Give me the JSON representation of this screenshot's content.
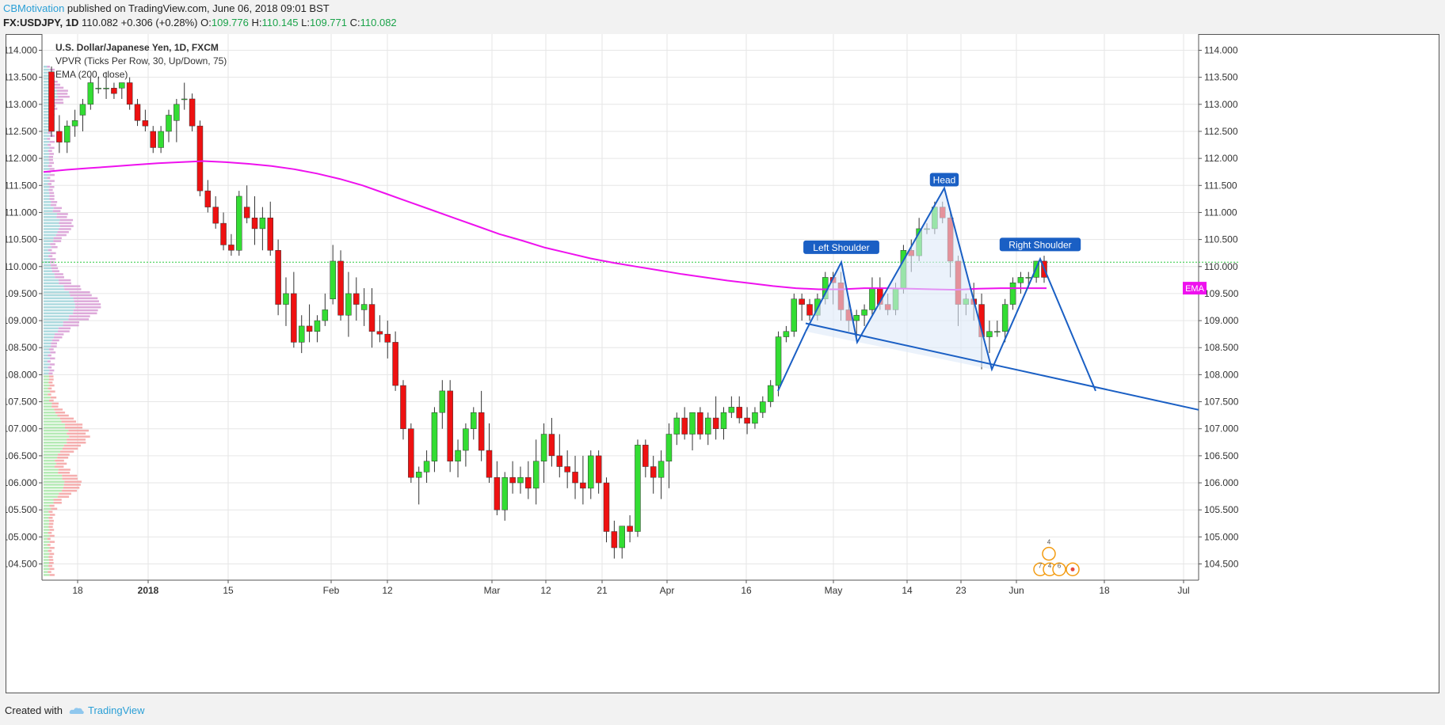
{
  "header": {
    "author": "CBMotivation",
    "published_text": " published on TradingView.com, June 06, 2018 09:01 BST",
    "symbol": "FX:USDJPY, 1D",
    "last": "110.082",
    "change": "+0.306 (+0.28%)",
    "o_label": "O:",
    "o_value": "109.776",
    "h_label": "H:",
    "h_value": "110.145",
    "l_label": "L:",
    "l_value": "109.771",
    "c_label": "C:",
    "c_value": "110.082"
  },
  "legend": {
    "title": "U.S. Dollar/Japanese Yen, 1D, FXCM",
    "vpvr": "VPVR (Ticks Per Row, 30, Up/Down, 75)",
    "ema": "EMA (200, close)"
  },
  "footer": {
    "created_with": "Created with",
    "brand": "TradingView"
  },
  "colors": {
    "up": "#33dd33",
    "down": "#ee1111",
    "ema": "#ee11ee",
    "pattern": "#1a5fc4",
    "pattern_fill": "#dde9f8",
    "grid": "#e6e6e6",
    "level": "#2ecc40"
  },
  "annotations": {
    "left_shoulder": "Left Shoulder",
    "head": "Head",
    "right_shoulder": "Right Shoulder",
    "ema_tag": "EMA",
    "events": [
      "4",
      "7",
      "4",
      "6"
    ]
  },
  "chart_data": {
    "type": "candlestick",
    "title": "U.S. Dollar/Japanese Yen, 1D, FXCM",
    "ylim": [
      104.2,
      114.3
    ],
    "y_ticks": [
      "114.000",
      "113.500",
      "113.000",
      "112.500",
      "112.000",
      "111.500",
      "111.000",
      "110.500",
      "110.000",
      "109.500",
      "109.000",
      "108.500",
      "108.000",
      "107.500",
      "107.000",
      "106.500",
      "106.000",
      "105.500",
      "105.000",
      "104.500"
    ],
    "x_ticks": [
      "18",
      "2018",
      "15",
      "Feb",
      "12",
      "Mar",
      "12",
      "21",
      "Apr",
      "16",
      "May",
      "14",
      "23",
      "Jun",
      "18",
      "Jul"
    ],
    "horizontal_level": 110.08,
    "grid": true,
    "candles": [
      [
        113.6,
        113.7,
        112.4,
        112.5
      ],
      [
        112.5,
        112.8,
        112.1,
        112.3
      ],
      [
        112.3,
        112.7,
        112.1,
        112.6
      ],
      [
        112.6,
        112.9,
        112.4,
        112.7
      ],
      [
        112.8,
        113.1,
        112.5,
        113.0
      ],
      [
        113.0,
        113.5,
        112.9,
        113.4
      ],
      [
        113.3,
        113.5,
        113.2,
        113.3
      ],
      [
        113.3,
        113.6,
        113.1,
        113.3
      ],
      [
        113.3,
        113.4,
        113.1,
        113.2
      ],
      [
        113.3,
        113.4,
        113.1,
        113.4
      ],
      [
        113.4,
        113.5,
        112.9,
        113.0
      ],
      [
        113.0,
        113.1,
        112.6,
        112.7
      ],
      [
        112.7,
        112.9,
        112.5,
        112.6
      ],
      [
        112.5,
        112.6,
        112.1,
        112.2
      ],
      [
        112.2,
        112.6,
        112.1,
        112.5
      ],
      [
        112.5,
        112.9,
        112.3,
        112.8
      ],
      [
        112.7,
        113.1,
        112.3,
        113.0
      ],
      [
        113.1,
        113.4,
        112.9,
        113.1
      ],
      [
        113.1,
        113.2,
        112.5,
        112.6
      ],
      [
        112.6,
        112.7,
        111.3,
        111.4
      ],
      [
        111.4,
        111.6,
        111.0,
        111.1
      ],
      [
        111.1,
        111.3,
        110.7,
        110.8
      ],
      [
        110.8,
        111.0,
        110.3,
        110.4
      ],
      [
        110.4,
        110.6,
        110.2,
        110.3
      ],
      [
        110.3,
        111.4,
        110.2,
        111.3
      ],
      [
        111.1,
        111.5,
        110.8,
        110.9
      ],
      [
        110.9,
        111.3,
        110.4,
        110.7
      ],
      [
        110.7,
        111.1,
        110.3,
        110.9
      ],
      [
        110.9,
        111.2,
        110.2,
        110.3
      ],
      [
        110.3,
        110.5,
        109.1,
        109.3
      ],
      [
        109.3,
        109.8,
        108.9,
        109.5
      ],
      [
        109.5,
        109.9,
        108.5,
        108.6
      ],
      [
        108.6,
        109.1,
        108.4,
        108.9
      ],
      [
        108.9,
        109.3,
        108.6,
        108.8
      ],
      [
        108.8,
        109.1,
        108.6,
        109.0
      ],
      [
        109.0,
        109.5,
        108.9,
        109.2
      ],
      [
        109.4,
        110.4,
        109.3,
        110.1
      ],
      [
        110.1,
        110.3,
        109.0,
        109.1
      ],
      [
        109.1,
        109.9,
        108.7,
        109.5
      ],
      [
        109.5,
        109.8,
        109.0,
        109.3
      ],
      [
        109.2,
        109.6,
        108.9,
        109.3
      ],
      [
        109.3,
        109.6,
        108.5,
        108.8
      ],
      [
        108.8,
        109.1,
        108.6,
        108.75
      ],
      [
        108.75,
        109.0,
        108.3,
        108.6
      ],
      [
        108.6,
        108.8,
        107.7,
        107.8
      ],
      [
        107.8,
        107.9,
        106.8,
        107.0
      ],
      [
        107.0,
        107.1,
        106.0,
        106.1
      ],
      [
        106.1,
        106.3,
        105.6,
        106.2
      ],
      [
        106.2,
        106.6,
        106.0,
        106.4
      ],
      [
        106.4,
        107.4,
        106.2,
        107.3
      ],
      [
        107.3,
        107.9,
        107.0,
        107.7
      ],
      [
        107.7,
        107.9,
        106.2,
        106.4
      ],
      [
        106.4,
        106.8,
        106.1,
        106.6
      ],
      [
        106.6,
        107.1,
        106.3,
        107.0
      ],
      [
        107.0,
        107.4,
        106.8,
        107.3
      ],
      [
        107.3,
        107.7,
        106.4,
        106.6
      ],
      [
        106.6,
        107.1,
        106.0,
        106.1
      ],
      [
        106.1,
        106.4,
        105.4,
        105.5
      ],
      [
        105.5,
        106.2,
        105.3,
        106.1
      ],
      [
        106.1,
        106.4,
        105.8,
        106.0
      ],
      [
        106.0,
        106.3,
        105.8,
        106.1
      ],
      [
        106.1,
        106.4,
        105.7,
        105.9
      ],
      [
        105.9,
        106.8,
        105.6,
        106.4
      ],
      [
        106.4,
        107.1,
        106.0,
        106.9
      ],
      [
        106.9,
        107.2,
        106.3,
        106.5
      ],
      [
        106.5,
        106.9,
        106.1,
        106.3
      ],
      [
        106.3,
        106.6,
        105.9,
        106.2
      ],
      [
        106.2,
        106.5,
        105.7,
        106.0
      ],
      [
        106.0,
        106.5,
        105.6,
        105.9
      ],
      [
        105.9,
        106.6,
        105.7,
        106.5
      ],
      [
        106.5,
        106.6,
        105.8,
        106.0
      ],
      [
        106.0,
        106.1,
        104.9,
        105.1
      ],
      [
        105.1,
        105.3,
        104.6,
        104.8
      ],
      [
        104.8,
        105.2,
        104.6,
        105.2
      ],
      [
        105.2,
        105.4,
        104.9,
        105.1
      ],
      [
        105.1,
        106.8,
        105.0,
        106.7
      ],
      [
        106.7,
        106.8,
        106.1,
        106.3
      ],
      [
        106.3,
        106.5,
        105.8,
        106.1
      ],
      [
        106.1,
        106.6,
        105.7,
        106.4
      ],
      [
        106.4,
        107.1,
        105.9,
        106.9
      ],
      [
        106.9,
        107.3,
        106.7,
        107.2
      ],
      [
        107.2,
        107.4,
        106.8,
        106.9
      ],
      [
        106.9,
        107.3,
        106.6,
        107.3
      ],
      [
        107.3,
        107.4,
        106.8,
        106.9
      ],
      [
        106.9,
        107.3,
        106.7,
        107.2
      ],
      [
        107.2,
        107.6,
        106.8,
        107.0
      ],
      [
        107.0,
        107.4,
        106.8,
        107.3
      ],
      [
        107.3,
        107.6,
        107.2,
        107.4
      ],
      [
        107.4,
        107.6,
        107.1,
        107.2
      ],
      [
        107.2,
        107.4,
        106.9,
        107.1
      ],
      [
        107.1,
        107.4,
        107.0,
        107.3
      ],
      [
        107.3,
        107.6,
        107.2,
        107.5
      ],
      [
        107.5,
        107.9,
        107.4,
        107.8
      ],
      [
        107.8,
        108.8,
        107.6,
        108.7
      ],
      [
        108.7,
        108.9,
        108.6,
        108.8
      ],
      [
        108.8,
        109.5,
        108.7,
        109.4
      ],
      [
        109.4,
        109.5,
        109.0,
        109.3
      ],
      [
        109.3,
        109.4,
        109.0,
        109.1
      ],
      [
        109.1,
        109.5,
        109.0,
        109.4
      ],
      [
        109.4,
        109.9,
        109.3,
        109.8
      ],
      [
        109.8,
        109.9,
        109.3,
        109.7
      ],
      [
        109.7,
        109.9,
        109.0,
        109.2
      ],
      [
        109.2,
        109.4,
        108.8,
        109.0
      ],
      [
        109.0,
        109.2,
        108.7,
        109.1
      ],
      [
        109.1,
        109.3,
        108.9,
        109.2
      ],
      [
        109.2,
        109.8,
        109.1,
        109.6
      ],
      [
        109.6,
        109.8,
        109.2,
        109.3
      ],
      [
        109.3,
        109.5,
        109.1,
        109.2
      ],
      [
        109.2,
        109.7,
        109.1,
        109.6
      ],
      [
        109.6,
        110.4,
        109.5,
        110.3
      ],
      [
        110.3,
        110.5,
        109.9,
        110.2
      ],
      [
        110.2,
        110.9,
        110.1,
        110.7
      ],
      [
        110.7,
        110.8,
        110.6,
        110.7
      ],
      [
        110.7,
        111.2,
        110.6,
        111.1
      ],
      [
        111.1,
        111.2,
        110.8,
        110.9
      ],
      [
        110.9,
        111.0,
        109.8,
        110.1
      ],
      [
        110.1,
        110.2,
        108.9,
        109.3
      ],
      [
        109.3,
        109.5,
        109.1,
        109.4
      ],
      [
        109.4,
        109.7,
        109.0,
        109.3
      ],
      [
        109.3,
        109.5,
        108.1,
        108.7
      ],
      [
        108.7,
        109.0,
        108.4,
        108.8
      ],
      [
        108.8,
        109.0,
        108.7,
        108.8
      ],
      [
        108.8,
        109.4,
        108.6,
        109.3
      ],
      [
        109.3,
        109.8,
        109.2,
        109.7
      ],
      [
        109.7,
        109.9,
        109.5,
        109.8
      ],
      [
        109.8,
        109.9,
        109.6,
        109.8
      ],
      [
        109.8,
        110.1,
        109.7,
        110.1
      ],
      [
        110.1,
        110.2,
        109.7,
        109.8
      ]
    ],
    "ema": [
      111.75,
      111.79,
      111.82,
      111.85,
      111.88,
      111.91,
      111.93,
      111.95,
      111.93,
      111.9,
      111.86,
      111.8,
      111.72,
      111.62,
      111.5,
      111.35,
      111.2,
      111.05,
      110.9,
      110.75,
      110.6,
      110.48,
      110.35,
      110.25,
      110.15,
      110.07,
      110.0,
      109.93,
      109.86,
      109.8,
      109.74,
      109.69,
      109.64,
      109.6,
      109.58,
      109.58,
      109.6,
      109.6,
      109.59,
      109.58,
      109.57,
      109.59,
      109.6,
      109.6,
      109.6
    ],
    "pattern": {
      "neckline": [
        [
          0.0,
          108.95
        ],
        [
          1.0,
          107.35
        ]
      ],
      "points": [
        "left_start",
        "left_shoulder",
        "trough1",
        "head",
        "trough2",
        "right_shoulder",
        "end"
      ],
      "values": [
        108.8,
        110.08,
        108.6,
        111.45,
        108.1,
        110.14,
        107.7
      ]
    }
  }
}
